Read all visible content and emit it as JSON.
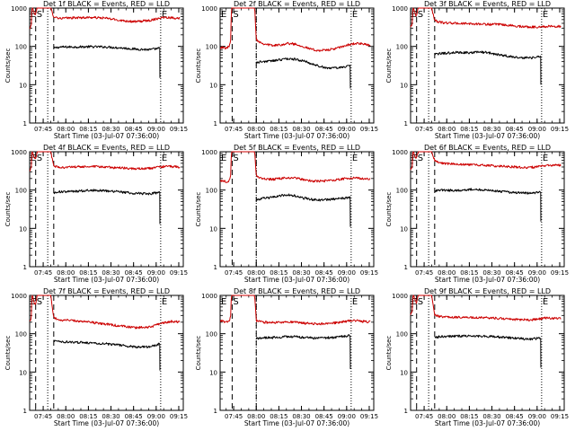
{
  "figure": {
    "panel_title_suffix": "BLACK = Events, RED = LLD",
    "xlabel": "Start Time (03-Jul-07 07:36:00)",
    "ylabel": "Counts/sec",
    "xtick_labels": [
      "07:45",
      "08:00",
      "08:15",
      "08:30",
      "08:45",
      "09:00",
      "09:15"
    ],
    "ytick_labels": [
      "1",
      "10",
      "100",
      "1000"
    ],
    "marker_labels": {
      "start": "S",
      "end": "E"
    },
    "colors": {
      "events": "#000000",
      "lld": "#cc0000",
      "axes": "#000000",
      "background": "#ffffff"
    }
  },
  "chart_data": [
    {
      "type": "line",
      "title": "Det 1f BLACK = Events, RED = LLD",
      "xlabel": "Start Time (03-Jul-07 07:36:00)",
      "ylabel": "Counts/sec",
      "x_unit": "minutes after 07:36:00",
      "xlim": [
        0,
        102
      ],
      "ylim": [
        1,
        1000
      ],
      "yscale": "log",
      "markers": {
        "E_left": 0,
        "S": 4,
        "dashed": [
          4,
          16
        ],
        "dotted": [
          12,
          87
        ],
        "E_right": 87
      },
      "series": [
        {
          "name": "Events",
          "color": "#000000",
          "x": [
            16,
            20,
            30,
            40,
            50,
            60,
            70,
            80,
            86.5
          ],
          "y": [
            90,
            96,
            97,
            98,
            97,
            92,
            85,
            82,
            90
          ],
          "drop_to": 15
        },
        {
          "name": "LLD",
          "color": "#cc0000",
          "x": [
            0,
            1,
            1.5,
            2,
            3,
            4,
            4.5,
            5,
            6,
            8,
            10,
            12,
            13,
            14,
            16,
            20,
            30,
            40,
            50,
            60,
            70,
            80,
            87,
            90,
            95,
            100
          ],
          "y": [
            280,
            350,
            1000,
            1000,
            750,
            680,
            820,
            1000,
            1000,
            1000,
            1000,
            1000,
            1000,
            1000,
            600,
            540,
            560,
            570,
            550,
            480,
            440,
            480,
            560,
            580,
            560,
            540
          ]
        }
      ]
    },
    {
      "type": "line",
      "title": "Det 2f BLACK = Events, RED = LLD",
      "xlabel": "Start Time (03-Jul-07 07:36:00)",
      "ylabel": "Counts/sec",
      "x_unit": "minutes after 07:36:00",
      "xlim": [
        0,
        102
      ],
      "ylim": [
        1,
        1000
      ],
      "yscale": "log",
      "markers": {
        "E_left": 0,
        "S": 8,
        "dashed": [
          8,
          24
        ],
        "dotted": [
          24,
          87
        ],
        "E_right": 87
      },
      "series": [
        {
          "name": "Events",
          "color": "#000000",
          "x": [
            24,
            28,
            35,
            40,
            45,
            50,
            55,
            60,
            65,
            70,
            75,
            80,
            86.5
          ],
          "y": [
            38,
            40,
            42,
            45,
            48,
            46,
            42,
            36,
            31,
            28,
            27,
            28,
            32
          ],
          "drop_to": 8
        },
        {
          "name": "LLD",
          "color": "#cc0000",
          "x": [
            0,
            2,
            4,
            6,
            7,
            7.5,
            8,
            9,
            10,
            12,
            14,
            16,
            18,
            20,
            22,
            23,
            24,
            28,
            35,
            40,
            45,
            50,
            55,
            60,
            65,
            70,
            75,
            80,
            85,
            90,
            95,
            100
          ],
          "y": [
            95,
            92,
            90,
            100,
            150,
            1000,
            1000,
            1000,
            1000,
            1000,
            1000,
            1000,
            1000,
            1000,
            1000,
            1000,
            150,
            120,
            105,
            110,
            120,
            115,
            100,
            85,
            78,
            80,
            85,
            95,
            110,
            120,
            115,
            105
          ]
        }
      ]
    },
    {
      "type": "line",
      "title": "Det 3f BLACK = Events, RED = LLD",
      "xlabel": "Start Time (03-Jul-07 07:36:00)",
      "ylabel": "Counts/sec",
      "x_unit": "minutes after 07:36:00",
      "xlim": [
        0,
        102
      ],
      "ylim": [
        1,
        1000
      ],
      "yscale": "log",
      "markers": {
        "E_left": 0,
        "S": 4,
        "dashed": [
          4,
          16
        ],
        "dotted": [
          12,
          87
        ],
        "E_right": 87
      },
      "series": [
        {
          "name": "Events",
          "color": "#000000",
          "x": [
            16,
            20,
            30,
            40,
            45,
            50,
            60,
            70,
            80,
            86.5
          ],
          "y": [
            62,
            65,
            70,
            68,
            72,
            70,
            60,
            52,
            50,
            55
          ],
          "drop_to": 10
        },
        {
          "name": "LLD",
          "color": "#cc0000",
          "x": [
            0,
            1,
            1.5,
            2,
            3,
            4,
            4.5,
            5,
            6,
            8,
            10,
            12,
            13,
            14,
            16,
            20,
            30,
            40,
            50,
            60,
            70,
            80,
            90,
            95,
            100
          ],
          "y": [
            320,
            380,
            1000,
            1000,
            700,
            620,
            820,
            1000,
            1000,
            1000,
            1000,
            1000,
            1000,
            1000,
            480,
            420,
            400,
            390,
            380,
            370,
            340,
            320,
            330,
            340,
            330
          ]
        }
      ]
    },
    {
      "type": "line",
      "title": "Det 4f BLACK = Events, RED = LLD",
      "xlabel": "Start Time (03-Jul-07 07:36:00)",
      "ylabel": "Counts/sec",
      "x_unit": "minutes after 07:36:00",
      "xlim": [
        0,
        102
      ],
      "ylim": [
        1,
        1000
      ],
      "yscale": "log",
      "markers": {
        "E_left": 0,
        "S": 4,
        "dashed": [
          4,
          16
        ],
        "dotted": [
          12,
          87
        ],
        "E_right": 87
      },
      "series": [
        {
          "name": "Events",
          "color": "#000000",
          "x": [
            16,
            20,
            30,
            40,
            50,
            60,
            70,
            80,
            86.5
          ],
          "y": [
            85,
            90,
            92,
            100,
            96,
            90,
            82,
            80,
            88
          ],
          "drop_to": 13
        },
        {
          "name": "LLD",
          "color": "#cc0000",
          "x": [
            0,
            1,
            1.5,
            2,
            3,
            4,
            4.5,
            5,
            6,
            8,
            10,
            12,
            13,
            14,
            16,
            20,
            30,
            40,
            50,
            60,
            70,
            80,
            87,
            90,
            95,
            100
          ],
          "y": [
            300,
            380,
            1000,
            1000,
            720,
            650,
            820,
            1000,
            1000,
            1000,
            1000,
            1000,
            1000,
            1000,
            420,
            390,
            400,
            410,
            400,
            380,
            360,
            370,
            400,
            420,
            410,
            400
          ]
        }
      ]
    },
    {
      "type": "line",
      "title": "Det 5f BLACK = Events, RED = LLD",
      "xlabel": "Start Time (03-Jul-07 07:36:00)",
      "ylabel": "Counts/sec",
      "x_unit": "minutes after 07:36:00",
      "xlim": [
        0,
        102
      ],
      "ylim": [
        1,
        1000
      ],
      "yscale": "log",
      "markers": {
        "E_left": 0,
        "S": 8,
        "dashed": [
          8,
          24
        ],
        "dotted": [
          24,
          87
        ],
        "E_right": 87
      },
      "series": [
        {
          "name": "Events",
          "color": "#000000",
          "x": [
            24,
            28,
            35,
            40,
            45,
            50,
            55,
            60,
            65,
            70,
            75,
            80,
            86.5
          ],
          "y": [
            55,
            60,
            65,
            72,
            75,
            70,
            62,
            58,
            55,
            56,
            58,
            60,
            65
          ],
          "drop_to": 11
        },
        {
          "name": "LLD",
          "color": "#cc0000",
          "x": [
            0,
            2,
            4,
            6,
            7,
            7.5,
            8,
            9,
            10,
            12,
            14,
            16,
            18,
            20,
            22,
            23,
            24,
            28,
            35,
            40,
            45,
            50,
            55,
            60,
            65,
            70,
            75,
            80,
            85,
            90,
            95,
            100
          ],
          "y": [
            180,
            170,
            165,
            175,
            240,
            1000,
            1000,
            1000,
            1000,
            1000,
            1000,
            1000,
            1000,
            1000,
            1000,
            1000,
            230,
            200,
            190,
            200,
            210,
            205,
            190,
            175,
            170,
            175,
            180,
            190,
            205,
            210,
            200,
            195
          ]
        }
      ]
    },
    {
      "type": "line",
      "title": "Det 6f BLACK = Events, RED = LLD",
      "xlabel": "Start Time (03-Jul-07 07:36:00)",
      "ylabel": "Counts/sec",
      "x_unit": "minutes after 07:36:00",
      "xlim": [
        0,
        102
      ],
      "ylim": [
        1,
        1000
      ],
      "yscale": "log",
      "markers": {
        "E_left": 0,
        "S": 4,
        "dashed": [
          4,
          16
        ],
        "dotted": [
          12,
          87
        ],
        "E_right": 87
      },
      "series": [
        {
          "name": "Events",
          "color": "#000000",
          "x": [
            16,
            20,
            30,
            40,
            50,
            60,
            70,
            80,
            86.5
          ],
          "y": [
            95,
            100,
            98,
            105,
            100,
            92,
            85,
            82,
            90
          ],
          "drop_to": 15
        },
        {
          "name": "LLD",
          "color": "#cc0000",
          "x": [
            0,
            1,
            1.5,
            2,
            3,
            4,
            4.5,
            5,
            6,
            8,
            10,
            12,
            13,
            14,
            16,
            20,
            30,
            40,
            50,
            60,
            70,
            80,
            87,
            90,
            95,
            100
          ],
          "y": [
            330,
            400,
            1000,
            1000,
            720,
            650,
            820,
            1000,
            1000,
            1000,
            1000,
            1000,
            1000,
            1000,
            600,
            500,
            480,
            460,
            440,
            420,
            400,
            390,
            420,
            440,
            450,
            440
          ]
        }
      ]
    },
    {
      "type": "line",
      "title": "Det 7f BLACK = Events, RED = LLD",
      "xlabel": "Start Time (03-Jul-07 07:36:00)",
      "ylabel": "Counts/sec",
      "x_unit": "minutes after 07:36:00",
      "xlim": [
        0,
        102
      ],
      "ylim": [
        1,
        1000
      ],
      "yscale": "log",
      "markers": {
        "E_left": 0,
        "S": 4,
        "dashed": [
          4,
          16
        ],
        "dotted": [
          12,
          87
        ],
        "E_right": 87
      },
      "series": [
        {
          "name": "Events",
          "color": "#000000",
          "x": [
            16,
            20,
            30,
            40,
            50,
            60,
            70,
            80,
            86.5
          ],
          "y": [
            65,
            62,
            60,
            58,
            55,
            50,
            45,
            45,
            55
          ],
          "drop_to": 11
        },
        {
          "name": "LLD",
          "color": "#cc0000",
          "x": [
            0,
            1,
            1.5,
            2,
            3,
            4,
            4.5,
            5,
            6,
            8,
            10,
            12,
            13,
            14,
            16,
            20,
            30,
            40,
            50,
            60,
            70,
            80,
            87,
            90,
            95,
            100
          ],
          "y": [
            200,
            260,
            1000,
            1000,
            620,
            560,
            720,
            1000,
            1000,
            1000,
            1000,
            1000,
            1000,
            1000,
            260,
            230,
            220,
            200,
            180,
            160,
            145,
            150,
            185,
            200,
            210,
            200
          ]
        }
      ]
    },
    {
      "type": "line",
      "title": "Det 8f BLACK = Events, RED = LLD",
      "xlabel": "Start Time (03-Jul-07 07:36:00)",
      "ylabel": "Counts/sec",
      "x_unit": "minutes after 07:36:00",
      "xlim": [
        0,
        102
      ],
      "ylim": [
        1,
        1000
      ],
      "yscale": "log",
      "markers": {
        "E_left": 0,
        "S": 8,
        "dashed": [
          8,
          24
        ],
        "dotted": [
          24,
          87
        ],
        "E_right": 87
      },
      "series": [
        {
          "name": "Events",
          "color": "#000000",
          "x": [
            24,
            28,
            35,
            40,
            45,
            50,
            55,
            60,
            65,
            70,
            75,
            80,
            86.5
          ],
          "y": [
            75,
            78,
            80,
            82,
            85,
            83,
            80,
            78,
            76,
            78,
            80,
            84,
            90
          ],
          "drop_to": 12
        },
        {
          "name": "LLD",
          "color": "#cc0000",
          "x": [
            0,
            2,
            4,
            6,
            7,
            7.5,
            8,
            9,
            10,
            12,
            14,
            16,
            18,
            20,
            22,
            23,
            24,
            28,
            35,
            40,
            45,
            50,
            55,
            60,
            65,
            70,
            75,
            80,
            85,
            90,
            95,
            100
          ],
          "y": [
            220,
            210,
            205,
            215,
            280,
            1000,
            1000,
            1000,
            1000,
            1000,
            1000,
            1000,
            1000,
            1000,
            1000,
            1000,
            220,
            200,
            195,
            200,
            205,
            200,
            190,
            185,
            180,
            185,
            190,
            200,
            215,
            220,
            210,
            205
          ]
        }
      ]
    },
    {
      "type": "line",
      "title": "Det 9f BLACK = Events, RED = LLD",
      "xlabel": "Start Time (03-Jul-07 07:36:00)",
      "ylabel": "Counts/sec",
      "x_unit": "minutes after 07:36:00",
      "xlim": [
        0,
        102
      ],
      "ylim": [
        1,
        1000
      ],
      "yscale": "log",
      "markers": {
        "E_left": 0,
        "S": 4,
        "dashed": [
          4,
          16
        ],
        "dotted": [
          12,
          87
        ],
        "E_right": 87
      },
      "series": [
        {
          "name": "Events",
          "color": "#000000",
          "x": [
            16,
            20,
            30,
            40,
            50,
            60,
            70,
            80,
            86.5
          ],
          "y": [
            80,
            85,
            86,
            88,
            86,
            82,
            76,
            72,
            78
          ],
          "drop_to": 13
        },
        {
          "name": "LLD",
          "color": "#cc0000",
          "x": [
            0,
            1,
            1.5,
            2,
            3,
            4,
            4.5,
            5,
            6,
            8,
            10,
            12,
            13,
            14,
            16,
            20,
            30,
            40,
            50,
            60,
            70,
            80,
            87,
            90,
            95,
            100
          ],
          "y": [
            300,
            380,
            1000,
            1000,
            720,
            640,
            820,
            1000,
            1000,
            1000,
            1000,
            1000,
            1000,
            1000,
            300,
            280,
            270,
            265,
            260,
            250,
            235,
            230,
            250,
            260,
            255,
            250
          ]
        }
      ]
    }
  ]
}
